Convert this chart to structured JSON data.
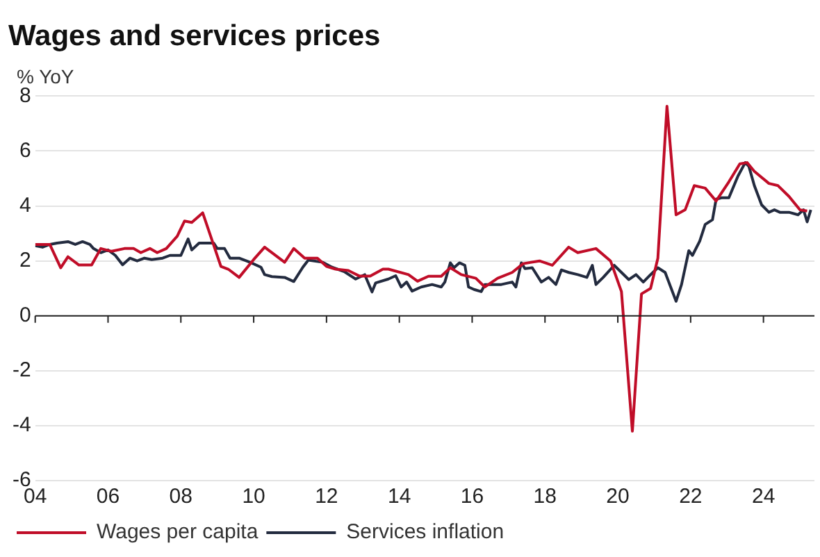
{
  "chart_data": {
    "type": "line",
    "title": "Wages and services prices",
    "ylabel": "% YoY",
    "xlim": [
      2004,
      2025.4
    ],
    "xticks": [
      {
        "value": 2004,
        "label": "04"
      },
      {
        "value": 2006,
        "label": "06"
      },
      {
        "value": 2008,
        "label": "08"
      },
      {
        "value": 2010,
        "label": "10"
      },
      {
        "value": 2012,
        "label": "12"
      },
      {
        "value": 2014,
        "label": "14"
      },
      {
        "value": 2016,
        "label": "16"
      },
      {
        "value": 2018,
        "label": "18"
      },
      {
        "value": 2020,
        "label": "20"
      },
      {
        "value": 2022,
        "label": "22"
      },
      {
        "value": 2024,
        "label": "24"
      }
    ],
    "ylim": [
      -6,
      8
    ],
    "yticks": [
      -6,
      -4,
      -2,
      0,
      2,
      4,
      6,
      8
    ],
    "grid": "y",
    "legend": "bottom",
    "marker": "none",
    "line_style": "solid",
    "series": [
      {
        "name": "Wages per capita",
        "color": "#c00d28",
        "x": [
          2004.0,
          2004.4,
          2004.7,
          2004.9,
          2005.2,
          2005.55,
          2005.8,
          2006.1,
          2006.45,
          2006.7,
          2006.9,
          2007.15,
          2007.35,
          2007.6,
          2007.9,
          2008.1,
          2008.3,
          2008.6,
          2009.1,
          2009.3,
          2009.6,
          2010.0,
          2010.3,
          2010.85,
          2011.1,
          2011.4,
          2011.75,
          2012.0,
          2012.25,
          2012.6,
          2012.9,
          2013.2,
          2013.55,
          2013.7,
          2014.25,
          2014.5,
          2014.8,
          2015.15,
          2015.4,
          2015.7,
          2016.1,
          2016.35,
          2016.7,
          2017.1,
          2017.4,
          2017.85,
          2018.2,
          2018.65,
          2018.9,
          2019.4,
          2019.8,
          2020.1,
          2020.4,
          2020.65,
          2020.9,
          2021.1,
          2021.35,
          2021.6,
          2021.85,
          2022.1,
          2022.4,
          2022.7,
          2023.05,
          2023.35,
          2023.55,
          2023.75,
          2024.15,
          2024.4,
          2024.7,
          2025.0,
          2025.2
        ],
        "values": [
          2.6,
          2.6,
          1.75,
          2.15,
          1.85,
          1.85,
          2.45,
          2.35,
          2.45,
          2.45,
          2.3,
          2.45,
          2.3,
          2.45,
          2.9,
          3.45,
          3.4,
          3.75,
          1.8,
          1.7,
          1.4,
          2.05,
          2.5,
          1.95,
          2.45,
          2.1,
          2.1,
          1.8,
          1.7,
          1.65,
          1.45,
          1.45,
          1.7,
          1.7,
          1.5,
          1.26,
          1.44,
          1.44,
          1.75,
          1.5,
          1.37,
          1.05,
          1.37,
          1.58,
          1.9,
          2.0,
          1.84,
          2.5,
          2.3,
          2.45,
          2.0,
          0.88,
          -4.2,
          0.8,
          1.0,
          2.1,
          7.63,
          3.68,
          3.86,
          4.74,
          4.65,
          4.18,
          4.88,
          5.53,
          5.58,
          5.26,
          4.82,
          4.74,
          4.35,
          3.86,
          3.82
        ]
      },
      {
        "name": "Services inflation",
        "color": "#232b3f",
        "x": [
          2004.0,
          2004.2,
          2004.4,
          2004.6,
          2004.9,
          2005.1,
          2005.3,
          2005.5,
          2005.6,
          2005.8,
          2006.0,
          2006.2,
          2006.4,
          2006.6,
          2006.8,
          2007.0,
          2007.2,
          2007.5,
          2007.7,
          2008.0,
          2008.2,
          2008.3,
          2008.5,
          2008.9,
          2009.0,
          2009.2,
          2009.35,
          2009.6,
          2009.9,
          2010.2,
          2010.3,
          2010.5,
          2010.85,
          2011.1,
          2011.35,
          2011.5,
          2011.9,
          2012.15,
          2012.5,
          2012.8,
          2013.05,
          2013.25,
          2013.35,
          2013.7,
          2013.9,
          2014.05,
          2014.2,
          2014.35,
          2014.6,
          2014.9,
          2015.15,
          2015.25,
          2015.4,
          2015.5,
          2015.65,
          2015.8,
          2015.9,
          2016.05,
          2016.25,
          2016.35,
          2016.55,
          2016.8,
          2017.1,
          2017.2,
          2017.35,
          2017.45,
          2017.65,
          2017.9,
          2018.1,
          2018.3,
          2018.45,
          2018.65,
          2018.9,
          2019.15,
          2019.3,
          2019.4,
          2019.6,
          2019.9,
          2020.1,
          2020.3,
          2020.5,
          2020.7,
          2020.9,
          2021.1,
          2021.3,
          2021.4,
          2021.6,
          2021.75,
          2021.95,
          2022.05,
          2022.25,
          2022.4,
          2022.6,
          2022.7,
          2022.85,
          2023.05,
          2023.3,
          2023.5,
          2023.6,
          2023.75,
          2023.95,
          2024.15,
          2024.3,
          2024.45,
          2024.7,
          2024.95,
          2025.1,
          2025.2,
          2025.3
        ],
        "values": [
          2.55,
          2.5,
          2.6,
          2.65,
          2.7,
          2.6,
          2.7,
          2.6,
          2.45,
          2.3,
          2.4,
          2.2,
          1.86,
          2.1,
          2.0,
          2.1,
          2.05,
          2.1,
          2.2,
          2.2,
          2.8,
          2.4,
          2.65,
          2.65,
          2.45,
          2.45,
          2.1,
          2.1,
          1.95,
          1.77,
          1.5,
          1.43,
          1.4,
          1.25,
          1.77,
          2.03,
          1.95,
          1.77,
          1.6,
          1.34,
          1.5,
          0.87,
          1.2,
          1.34,
          1.46,
          1.05,
          1.23,
          0.9,
          1.05,
          1.14,
          1.05,
          1.23,
          1.93,
          1.75,
          1.93,
          1.84,
          1.05,
          0.96,
          0.88,
          1.14,
          1.14,
          1.14,
          1.23,
          1.05,
          1.93,
          1.72,
          1.75,
          1.23,
          1.4,
          1.14,
          1.67,
          1.58,
          1.5,
          1.4,
          1.84,
          1.14,
          1.4,
          1.84,
          1.58,
          1.32,
          1.5,
          1.23,
          1.5,
          1.75,
          1.58,
          1.23,
          0.53,
          1.14,
          2.37,
          2.2,
          2.72,
          3.33,
          3.5,
          4.25,
          4.3,
          4.3,
          5.09,
          5.58,
          5.44,
          4.74,
          4.04,
          3.77,
          3.86,
          3.77,
          3.77,
          3.68,
          3.86,
          3.42,
          3.86
        ]
      }
    ]
  }
}
